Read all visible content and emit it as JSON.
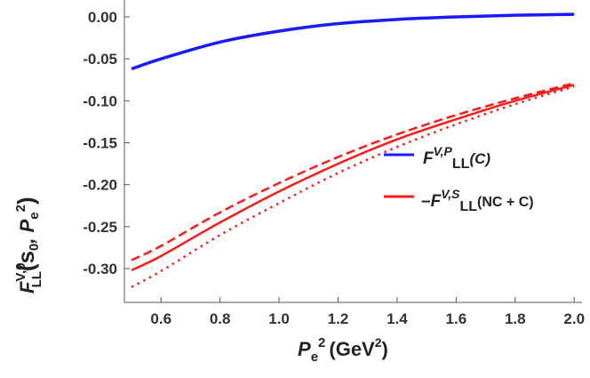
{
  "chart_data": {
    "type": "line",
    "xlabel": {
      "main": "P",
      "sub": "e",
      "sup": "2",
      "unit": "(GeV",
      "unit_sup": "2",
      "unit_close": ")"
    },
    "ylabel": {
      "main": "F",
      "sup": "V,0",
      "sub": "LL",
      "args": "(s",
      "args_sub": "0",
      "args_mid": ", P",
      "args_sub2": "e",
      "args_sup": "2",
      "args_close": ")"
    },
    "xlim": [
      0.5,
      2.0
    ],
    "ylim": [
      -0.335,
      0.02
    ],
    "xticks": [
      "0.6",
      "0.8",
      "1.0",
      "1.2",
      "1.4",
      "1.6",
      "1.8",
      "2.0"
    ],
    "xtick_values": [
      0.6,
      0.8,
      1.0,
      1.2,
      1.4,
      1.6,
      1.8,
      2.0
    ],
    "yticks": [
      "0.00",
      "-0.05",
      "-0.10",
      "-0.15",
      "-0.20",
      "-0.25",
      "-0.30"
    ],
    "ytick_values": [
      0,
      -0.05,
      -0.1,
      -0.15,
      -0.2,
      -0.25,
      -0.3
    ],
    "x": [
      0.5,
      0.6,
      0.8,
      1.0,
      1.2,
      1.4,
      1.6,
      1.8,
      2.0
    ],
    "series": [
      {
        "id": "blue",
        "color": "#1a1aff",
        "style": "solid",
        "values": [
          -0.062,
          -0.05,
          -0.03,
          -0.017,
          -0.008,
          -0.003,
          0.0,
          0.002,
          0.003
        ]
      },
      {
        "id": "red-solid",
        "color": "#ff1a1a",
        "style": "solid",
        "values": [
          -0.302,
          -0.285,
          -0.245,
          -0.208,
          -0.175,
          -0.146,
          -0.122,
          -0.1,
          -0.081
        ]
      },
      {
        "id": "red-dashed",
        "color": "#ff1a1a",
        "style": "dashed",
        "values": [
          -0.29,
          -0.273,
          -0.233,
          -0.198,
          -0.167,
          -0.14,
          -0.117,
          -0.097,
          -0.079
        ]
      },
      {
        "id": "red-dotted",
        "color": "#ff1a1a",
        "style": "dotted",
        "values": [
          -0.322,
          -0.303,
          -0.26,
          -0.222,
          -0.186,
          -0.155,
          -0.128,
          -0.104,
          -0.083
        ]
      }
    ],
    "legend": {
      "placement": "right",
      "entries": [
        {
          "color": "#1a1aff",
          "prefix": "",
          "main": "F",
          "sup": "V,P",
          "sub": "LL",
          "tail": "(C)"
        },
        {
          "color": "#ff1a1a",
          "prefix": "–",
          "main": "F",
          "sup": "V,S",
          "sub": "LL",
          "tail": "(NC + C)"
        }
      ]
    }
  }
}
